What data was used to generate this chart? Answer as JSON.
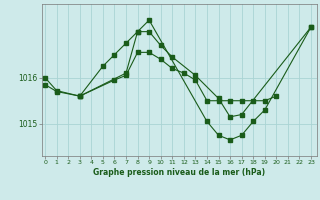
{
  "title": "Graphe pression niveau de la mer (hPa)",
  "background_color": "#ceeaea",
  "grid_color": "#aad4d4",
  "line_color": "#1a5c1a",
  "marker_color": "#1a5c1a",
  "x_ticks": [
    0,
    1,
    2,
    3,
    4,
    5,
    6,
    7,
    8,
    9,
    10,
    11,
    12,
    13,
    14,
    15,
    16,
    17,
    18,
    19,
    20,
    21,
    22,
    23
  ],
  "y_ticks": [
    1015,
    1016
  ],
  "ylim": [
    1014.3,
    1017.6
  ],
  "xlim": [
    -0.3,
    23.5
  ],
  "figsize": [
    3.2,
    2.0
  ],
  "dpi": 100,
  "series1_x": [
    0,
    1,
    3,
    6,
    7,
    8,
    9,
    10,
    11,
    12,
    13,
    14,
    15,
    16,
    17,
    18,
    19,
    20
  ],
  "series1_y": [
    1015.85,
    1015.7,
    1015.6,
    1015.95,
    1016.05,
    1016.55,
    1016.55,
    1016.4,
    1016.2,
    1016.1,
    1015.95,
    1015.5,
    1015.5,
    1015.5,
    1015.5,
    1015.5,
    1015.5,
    1015.6
  ],
  "series2_x": [
    0,
    1,
    3,
    5,
    6,
    7,
    8,
    9,
    10,
    11,
    13,
    15,
    16,
    17,
    23
  ],
  "series2_y": [
    1016.0,
    1015.72,
    1015.6,
    1016.25,
    1016.5,
    1016.75,
    1017.0,
    1017.0,
    1016.7,
    1016.45,
    1016.05,
    1015.55,
    1015.15,
    1015.2,
    1017.1
  ],
  "series3_x": [
    3,
    7,
    8,
    9,
    14,
    15,
    16,
    17,
    18,
    19,
    23
  ],
  "series3_y": [
    1015.6,
    1016.1,
    1017.0,
    1017.25,
    1015.05,
    1014.75,
    1014.65,
    1014.75,
    1015.05,
    1015.3,
    1017.1
  ]
}
